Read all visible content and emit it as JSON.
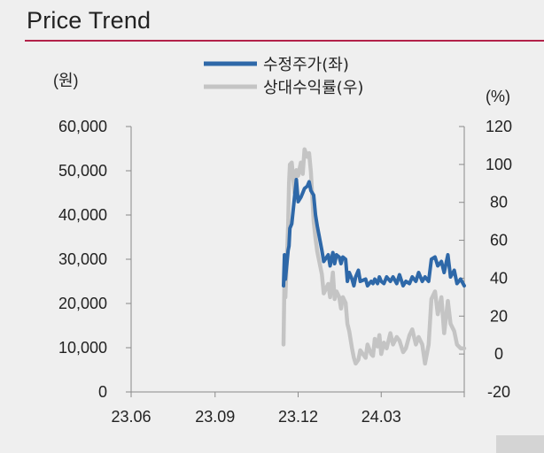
{
  "title": "Price Trend",
  "chart_data": {
    "type": "line",
    "left_unit": "(원)",
    "right_unit": "(%)",
    "x_ticks": [
      "23.06",
      "23.09",
      "23.12",
      "24.03"
    ],
    "x_range": [
      "2023-06-01",
      "2024-05-31"
    ],
    "y_left": {
      "range": [
        0,
        60000
      ],
      "ticks": [
        "0",
        "10,000",
        "20,000",
        "30,000",
        "40,000",
        "50,000",
        "60,000"
      ]
    },
    "y_right": {
      "range": [
        -20,
        120
      ],
      "ticks": [
        "-20",
        "0",
        "20",
        "40",
        "60",
        "80",
        "100",
        "120"
      ]
    },
    "legend_position": "top-center",
    "series": [
      {
        "name": "수정주가(좌)",
        "axis": "left",
        "color": "#2e68a8",
        "x": [
          "2023-11-15",
          "2023-11-16",
          "2023-11-17",
          "2023-11-20",
          "2023-11-21",
          "2023-11-22",
          "2023-11-24",
          "2023-11-27",
          "2023-11-29",
          "2023-12-01",
          "2023-12-04",
          "2023-12-06",
          "2023-12-08",
          "2023-12-11",
          "2023-12-13",
          "2023-12-15",
          "2023-12-18",
          "2023-12-20",
          "2023-12-22",
          "2023-12-27",
          "2023-12-29",
          "2024-01-03",
          "2024-01-05",
          "2024-01-08",
          "2024-01-10",
          "2024-01-12",
          "2024-01-15",
          "2024-01-17",
          "2024-01-19",
          "2024-01-22",
          "2024-01-24",
          "2024-01-26",
          "2024-01-29",
          "2024-01-31",
          "2024-02-02",
          "2024-02-05",
          "2024-02-07",
          "2024-02-13",
          "2024-02-15",
          "2024-02-19",
          "2024-02-21",
          "2024-02-23",
          "2024-02-26",
          "2024-02-28",
          "2024-03-01",
          "2024-03-04",
          "2024-03-07",
          "2024-03-11",
          "2024-03-14",
          "2024-03-18",
          "2024-03-21",
          "2024-03-25",
          "2024-03-28",
          "2024-04-01",
          "2024-04-04",
          "2024-04-08",
          "2024-04-11",
          "2024-04-15",
          "2024-04-18",
          "2024-04-22",
          "2024-04-25",
          "2024-04-29",
          "2024-05-02",
          "2024-05-06",
          "2024-05-09",
          "2024-05-13",
          "2024-05-16",
          "2024-05-20",
          "2024-05-23",
          "2024-05-27",
          "2024-05-31"
        ],
        "y": [
          24000,
          31000,
          25500,
          32000,
          33000,
          37000,
          38000,
          44000,
          48000,
          43000,
          44000,
          45000,
          46000,
          46500,
          47500,
          45500,
          44500,
          40000,
          37500,
          32000,
          29500,
          31000,
          28500,
          31500,
          29000,
          31000,
          30500,
          29000,
          30500,
          30000,
          25000,
          27000,
          25500,
          24000,
          26000,
          27500,
          25000,
          25500,
          24000,
          25000,
          24500,
          25500,
          24500,
          26000,
          25000,
          24500,
          26000,
          25000,
          26000,
          24500,
          26500,
          24000,
          25000,
          24500,
          26000,
          25000,
          27000,
          25000,
          26000,
          25000,
          30000,
          30500,
          28500,
          29500,
          27000,
          31000,
          26000,
          27500,
          24500,
          25500,
          24000
        ]
      },
      {
        "name": "상대수익률(우)",
        "axis": "right",
        "color": "#c4c4c4",
        "x": [
          "2023-11-15",
          "2023-11-16",
          "2023-11-17",
          "2023-11-20",
          "2023-11-21",
          "2023-11-22",
          "2023-11-24",
          "2023-11-27",
          "2023-11-29",
          "2023-12-01",
          "2023-12-04",
          "2023-12-06",
          "2023-12-08",
          "2023-12-11",
          "2023-12-13",
          "2023-12-15",
          "2023-12-18",
          "2023-12-20",
          "2023-12-22",
          "2023-12-27",
          "2023-12-29",
          "2024-01-03",
          "2024-01-05",
          "2024-01-08",
          "2024-01-10",
          "2024-01-12",
          "2024-01-15",
          "2024-01-17",
          "2024-01-19",
          "2024-01-22",
          "2024-01-24",
          "2024-01-26",
          "2024-01-29",
          "2024-01-31",
          "2024-02-02",
          "2024-02-05",
          "2024-02-07",
          "2024-02-13",
          "2024-02-15",
          "2024-02-19",
          "2024-02-21",
          "2024-02-23",
          "2024-02-26",
          "2024-02-28",
          "2024-03-01",
          "2024-03-04",
          "2024-03-07",
          "2024-03-11",
          "2024-03-14",
          "2024-03-18",
          "2024-03-21",
          "2024-03-25",
          "2024-03-28",
          "2024-04-01",
          "2024-04-04",
          "2024-04-08",
          "2024-04-11",
          "2024-04-15",
          "2024-04-18",
          "2024-04-22",
          "2024-04-25",
          "2024-04-29",
          "2024-05-02",
          "2024-05-06",
          "2024-05-09",
          "2024-05-13",
          "2024-05-16",
          "2024-05-20",
          "2024-05-23",
          "2024-05-27",
          "2024-05-31"
        ],
        "y": [
          5,
          40,
          30,
          68,
          90,
          100,
          101,
          85,
          97,
          94,
          101,
          95,
          108,
          104,
          106,
          96,
          70,
          61,
          54,
          42,
          32,
          37,
          30,
          43,
          29,
          33,
          30,
          24,
          30,
          27,
          16,
          12,
          3,
          -2,
          -5,
          -3,
          2,
          -2,
          5,
          0,
          -1,
          8,
          4,
          10,
          0,
          6,
          3,
          11,
          5,
          9,
          7,
          1,
          3,
          10,
          13,
          5,
          9,
          5,
          -5,
          5,
          29,
          33,
          21,
          30,
          11,
          28,
          16,
          12,
          5,
          3,
          3
        ]
      }
    ]
  }
}
